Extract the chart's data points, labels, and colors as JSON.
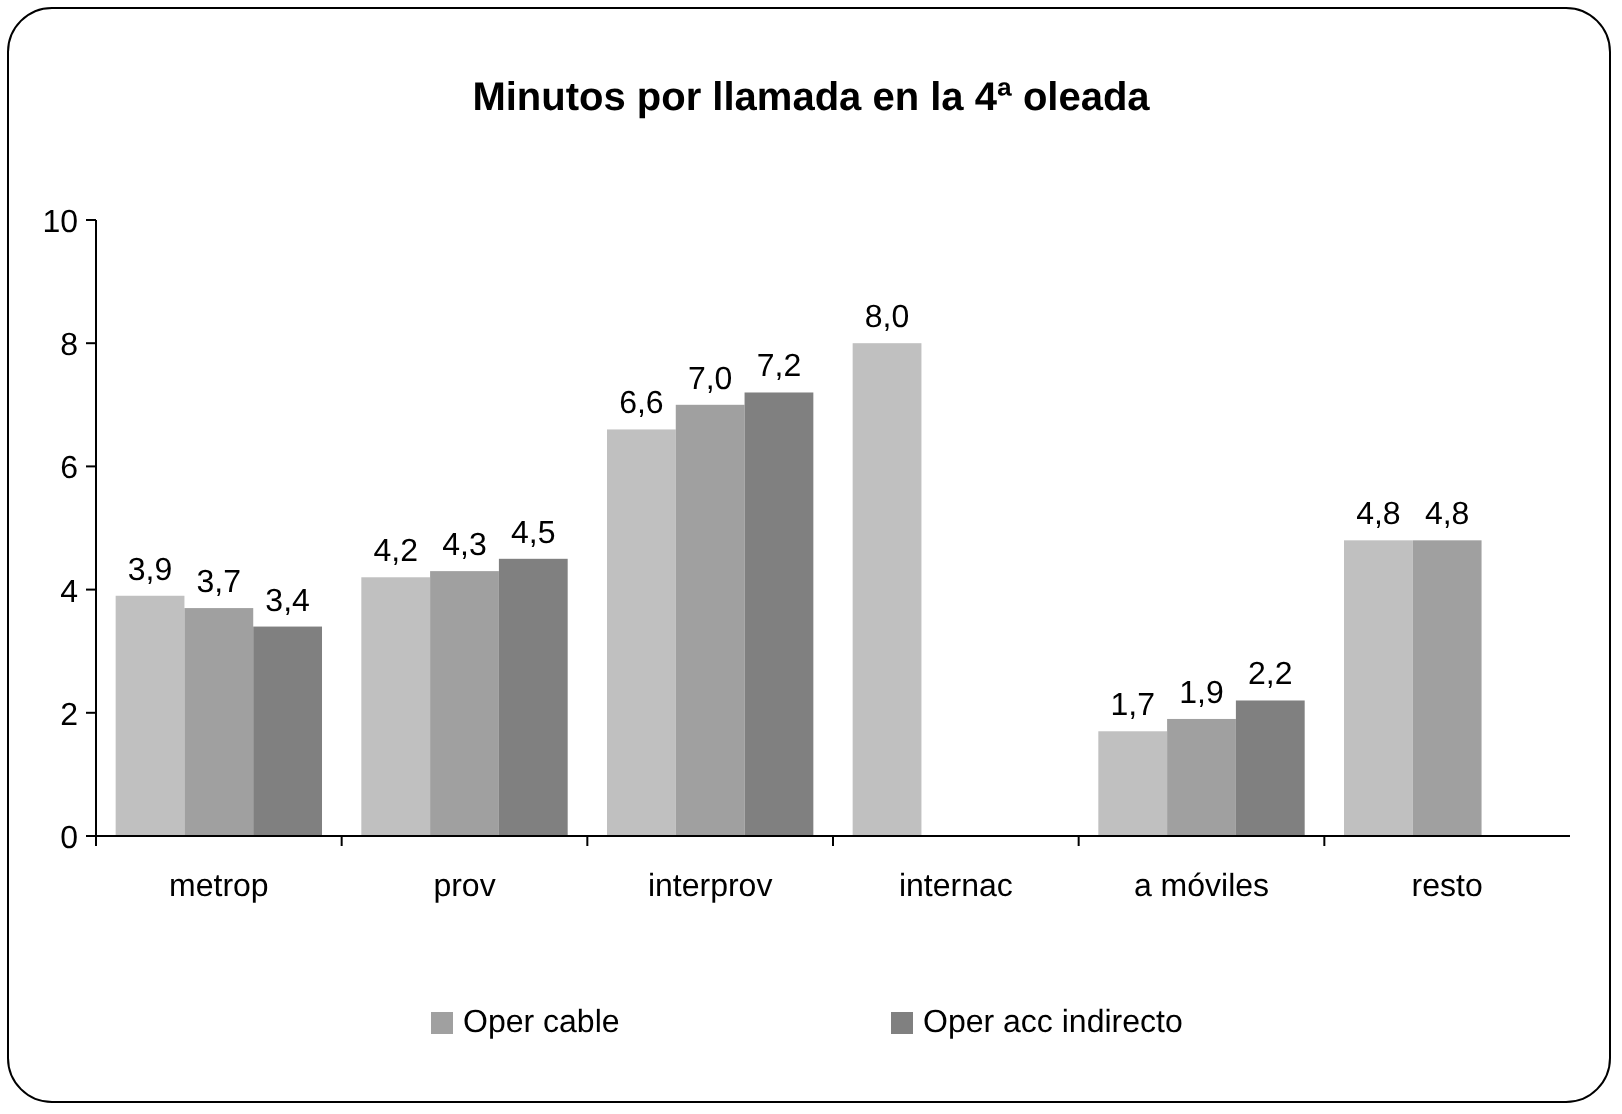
{
  "chart_data": {
    "type": "bar",
    "title": "Minutos por llamada en la 4ª oleada",
    "categories": [
      "metrop",
      "prov",
      "interprov",
      "internac",
      "a móviles",
      "resto"
    ],
    "series": [
      {
        "color": "#c0c0c0",
        "values": [
          3.9,
          4.2,
          6.6,
          8.0,
          1.7,
          4.8
        ],
        "value_labels": [
          "3,9",
          "4,2",
          "6,6",
          "8,0",
          "1,7",
          "4,8"
        ]
      },
      {
        "name": "Oper cable",
        "color": "#a0a0a0",
        "values": [
          3.7,
          4.3,
          7.0,
          null,
          1.9,
          4.8
        ],
        "value_labels": [
          "3,7",
          "4,3",
          "7,0",
          null,
          "1,9",
          "4,8"
        ]
      },
      {
        "name": "Oper acc indirecto",
        "color": "#808080",
        "values": [
          3.4,
          4.5,
          7.2,
          null,
          2.2,
          null
        ],
        "value_labels": [
          "3,4",
          "4,5",
          "7,2",
          null,
          "2,2",
          null
        ]
      }
    ],
    "ylim": [
      0,
      10
    ],
    "yticks": [
      0,
      2,
      4,
      6,
      8,
      10
    ],
    "grid": false,
    "legend": "bottom"
  }
}
